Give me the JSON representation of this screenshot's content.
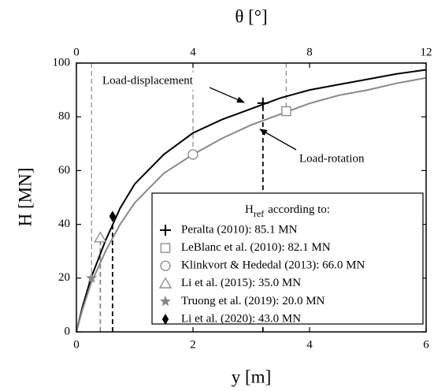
{
  "chart_data": {
    "type": "line",
    "xlabel": "y [m]",
    "ylabel": "H [MN]",
    "x2label": "θ [°]",
    "xlim": [
      0,
      6
    ],
    "xticks": [
      0,
      2,
      4,
      6
    ],
    "ylim": [
      0,
      100
    ],
    "yticks": [
      0,
      20,
      40,
      60,
      80,
      100
    ],
    "x2lim": [
      0,
      12
    ],
    "x2ticks": [
      0,
      4,
      8,
      12
    ],
    "x": [
      0,
      0.1,
      0.25,
      0.5,
      0.75,
      1,
      1.5,
      2,
      2.5,
      3,
      3.5,
      4,
      4.5,
      5,
      5.5,
      6
    ],
    "series": [
      {
        "name": "Load-displacement",
        "color": "#000000",
        "values": [
          0,
          9,
          20,
          34,
          46,
          55,
          66,
          74,
          79,
          83,
          87,
          90,
          92,
          94,
          96,
          97.5
        ]
      },
      {
        "name": "Load-rotation",
        "color": "#888888",
        "values": [
          0,
          8,
          18,
          30,
          40,
          48,
          59,
          66,
          72,
          77,
          81,
          85,
          88,
          90,
          92.5,
          94.5
        ]
      }
    ],
    "legend_title": "H",
    "legend_title_sub": "ref",
    "legend_title_rest": "according to:",
    "markers": [
      {
        "label": "Peralta (2010): 85.1 MN",
        "x": 3.2,
        "y": 85.1,
        "symbol": "cross",
        "color": "#000000",
        "guide": "down"
      },
      {
        "label": "LeBlanc et al. (2010): 82.1 MN",
        "x": 3.6,
        "y": 82.1,
        "symbol": "square",
        "color": "#888888",
        "guide": "up"
      },
      {
        "label": "Klinkvort & Hededal (2013): 66.0 MN",
        "x": 2,
        "y": 66.0,
        "symbol": "circle",
        "color": "#888888",
        "guide": "up"
      },
      {
        "label": "Li et al. (2015): 35.0 MN",
        "x": 0.41,
        "y": 35.0,
        "symbol": "triangle",
        "color": "#888888",
        "guide": "down"
      },
      {
        "label": "Truong et al. (2019): 20.0 MN",
        "x": 0.26,
        "y": 20.0,
        "symbol": "star",
        "color": "#888888",
        "guide": "up"
      },
      {
        "label": "Li et al. (2020): 43.0 MN",
        "x": 0.62,
        "y": 43.0,
        "symbol": "diamond",
        "color": "#000000",
        "guide": "down"
      }
    ]
  }
}
